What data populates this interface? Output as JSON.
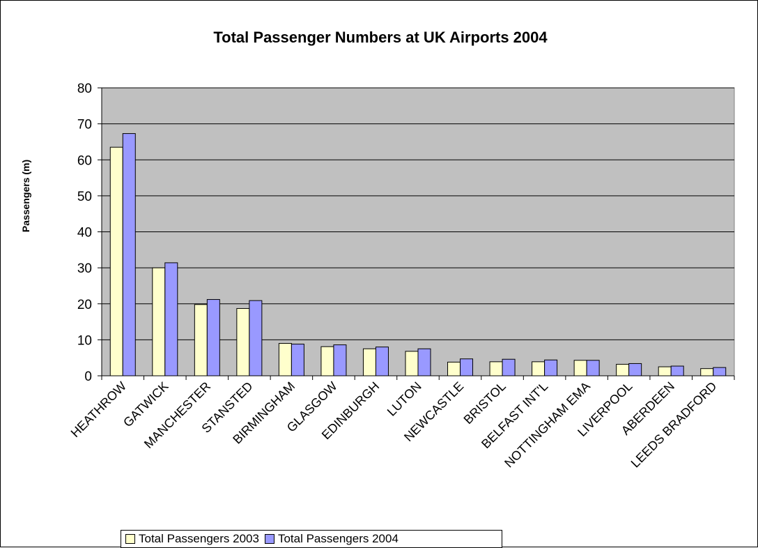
{
  "chart_data": {
    "type": "bar",
    "title": "Total Passenger Numbers at UK Airports 2004",
    "xlabel": "",
    "ylabel": "Passengers (m)",
    "ylim": [
      0,
      80
    ],
    "yticks": [
      0,
      10,
      20,
      30,
      40,
      50,
      60,
      70,
      80
    ],
    "grid": true,
    "legend_position": "bottom",
    "categories": [
      "HEATHROW",
      "GATWICK",
      "MANCHESTER",
      "STANSTED",
      "BIRMINGHAM",
      "GLASGOW",
      "EDINBURGH",
      "LUTON",
      "NEWCASTLE",
      "BRISTOL",
      "BELFAST INT'L",
      "NOTTINGHAM EMA",
      "LIVERPOOL",
      "ABERDEEN",
      "LEEDS BRADFORD"
    ],
    "series": [
      {
        "name": "Total Passengers 2003",
        "color": "#ffffcc",
        "values": [
          63.5,
          30.0,
          19.8,
          18.7,
          9.0,
          8.1,
          7.5,
          6.8,
          3.8,
          3.9,
          3.9,
          4.3,
          3.2,
          2.5,
          2.0
        ]
      },
      {
        "name": "Total Passengers 2004",
        "color": "#9999ff",
        "values": [
          67.3,
          31.4,
          21.2,
          20.9,
          8.8,
          8.6,
          8.0,
          7.5,
          4.7,
          4.6,
          4.4,
          4.3,
          3.4,
          2.7,
          2.3
        ]
      }
    ],
    "plot_background": "#c0c0c0"
  }
}
